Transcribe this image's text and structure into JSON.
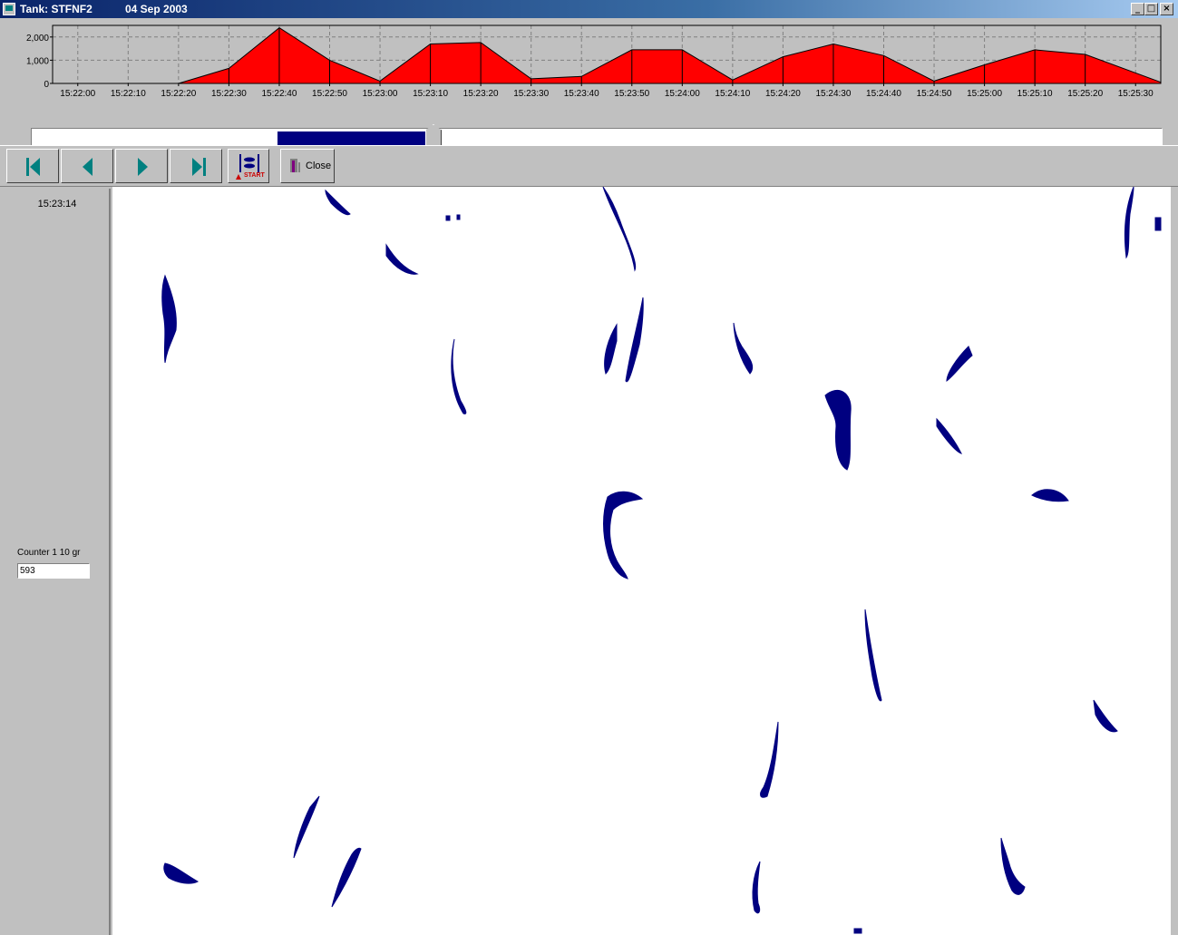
{
  "window": {
    "title": "Tank: STFNF2",
    "date": "04 Sep 2003",
    "controls": {
      "minimize": "_",
      "maximize": "□",
      "close": "×"
    }
  },
  "chart_data": {
    "type": "area",
    "color": "#ff0000",
    "ylim": [
      0,
      2500
    ],
    "yticks": [
      0,
      1000,
      2000
    ],
    "ytick_labels": [
      "0",
      "1,000",
      "2,000"
    ],
    "xlim": [
      "15:21:55",
      "15:25:35"
    ],
    "xtick_labels": [
      "15:22:00",
      "15:22:10",
      "15:22:20",
      "15:22:30",
      "15:22:40",
      "15:22:50",
      "15:23:00",
      "15:23:10",
      "15:23:20",
      "15:23:30",
      "15:23:40",
      "15:23:50",
      "15:24:00",
      "15:24:10",
      "15:24:20",
      "15:24:30",
      "15:24:40",
      "15:24:50",
      "15:25:00",
      "15:25:10",
      "15:25:20",
      "15:25:30"
    ],
    "grid": true,
    "points": [
      {
        "t": "15:21:55",
        "v": 0
      },
      {
        "t": "15:22:20",
        "v": 0
      },
      {
        "t": "15:22:30",
        "v": 650
      },
      {
        "t": "15:22:40",
        "v": 2400
      },
      {
        "t": "15:22:50",
        "v": 1000
      },
      {
        "t": "15:23:00",
        "v": 100
      },
      {
        "t": "15:23:10",
        "v": 1700
      },
      {
        "t": "15:23:20",
        "v": 1760
      },
      {
        "t": "15:23:30",
        "v": 200
      },
      {
        "t": "15:23:40",
        "v": 300
      },
      {
        "t": "15:23:50",
        "v": 1450
      },
      {
        "t": "15:24:00",
        "v": 1450
      },
      {
        "t": "15:24:10",
        "v": 150
      },
      {
        "t": "15:24:20",
        "v": 1150
      },
      {
        "t": "15:24:30",
        "v": 1700
      },
      {
        "t": "15:24:40",
        "v": 1200
      },
      {
        "t": "15:24:50",
        "v": 100
      },
      {
        "t": "15:25:00",
        "v": 800
      },
      {
        "t": "15:25:10",
        "v": 1450
      },
      {
        "t": "15:25:20",
        "v": 1250
      },
      {
        "t": "15:25:35",
        "v": 50
      }
    ]
  },
  "timeline": {
    "position": 0.36,
    "window_start": 0.218,
    "window_end": 0.35
  },
  "toolbar": {
    "buttons": [
      {
        "name": "first-frame",
        "icon": "skip-first-icon"
      },
      {
        "name": "previous-frame",
        "icon": "step-back-icon"
      },
      {
        "name": "next-frame",
        "icon": "step-forward-icon"
      },
      {
        "name": "last-frame",
        "icon": "skip-last-icon"
      }
    ],
    "start_label": "START",
    "close_label": "Close"
  },
  "side_panel": {
    "time": "15:23:14",
    "counter_label": "Counter 1   10 gr",
    "counter_value": "593"
  },
  "view": {
    "fish_color": "#000080"
  }
}
